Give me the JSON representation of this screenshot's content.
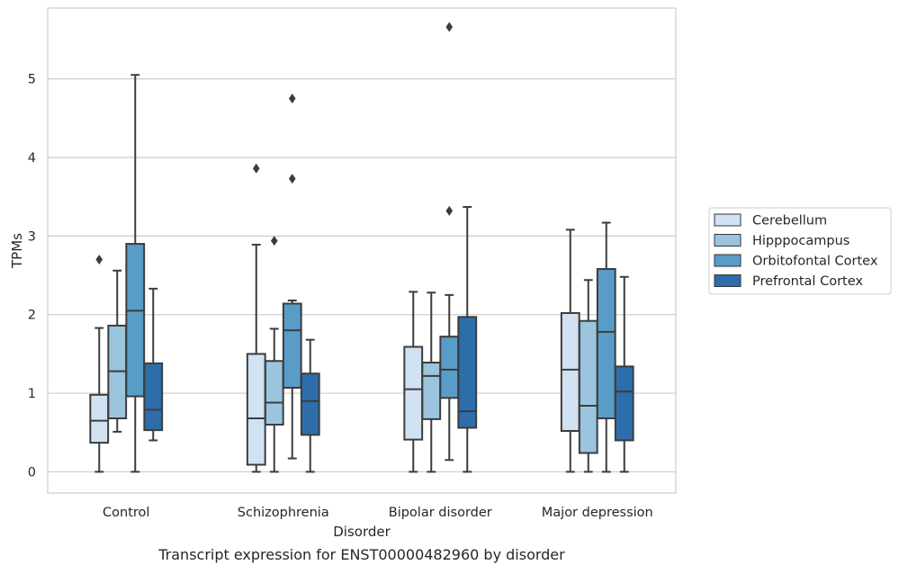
{
  "chart_data": {
    "type": "box",
    "title": "",
    "caption": "Transcript expression for ENST00000482960 by disorder",
    "xlabel": "Disorder",
    "ylabel": "TPMs",
    "ylim": [
      -0.27,
      5.9
    ],
    "yticks": [
      0,
      1,
      2,
      3,
      4,
      5
    ],
    "grid": "horizontal",
    "legend_position": "right",
    "categories": [
      "Control",
      "Schizophrenia",
      "Bipolar disorder",
      "Major depression"
    ],
    "series": [
      {
        "name": "Cerebellum",
        "color": "#d1e2f2",
        "boxes": [
          {
            "whislo": 0.0,
            "q1": 0.37,
            "med": 0.65,
            "q3": 0.98,
            "whishi": 1.83,
            "fliers": [
              2.7
            ]
          },
          {
            "whislo": 0.0,
            "q1": 0.09,
            "med": 0.68,
            "q3": 1.5,
            "whishi": 2.89,
            "fliers": [
              3.86
            ]
          },
          {
            "whislo": 0.0,
            "q1": 0.41,
            "med": 1.05,
            "q3": 1.59,
            "whishi": 2.29,
            "fliers": []
          },
          {
            "whislo": 0.0,
            "q1": 0.52,
            "med": 1.3,
            "q3": 2.02,
            "whishi": 3.08,
            "fliers": []
          }
        ]
      },
      {
        "name": "Hipppocampus",
        "color": "#9bc4de",
        "boxes": [
          {
            "whislo": 0.51,
            "q1": 0.68,
            "med": 1.28,
            "q3": 1.86,
            "whishi": 2.56,
            "fliers": []
          },
          {
            "whislo": 0.0,
            "q1": 0.6,
            "med": 0.88,
            "q3": 1.41,
            "whishi": 1.82,
            "fliers": [
              2.94
            ]
          },
          {
            "whislo": 0.0,
            "q1": 0.67,
            "med": 1.22,
            "q3": 1.39,
            "whishi": 2.28,
            "fliers": []
          },
          {
            "whislo": 0.0,
            "q1": 0.24,
            "med": 0.84,
            "q3": 1.92,
            "whishi": 2.44,
            "fliers": []
          }
        ]
      },
      {
        "name": "Orbitofontal Cortex",
        "color": "#5a9cc8",
        "boxes": [
          {
            "whislo": 0.0,
            "q1": 0.96,
            "med": 2.05,
            "q3": 2.9,
            "whishi": 5.05,
            "fliers": []
          },
          {
            "whislo": 0.17,
            "q1": 1.07,
            "med": 1.8,
            "q3": 2.14,
            "whishi": 2.18,
            "fliers": [
              3.73,
              4.75
            ]
          },
          {
            "whislo": 0.15,
            "q1": 0.94,
            "med": 1.3,
            "q3": 1.72,
            "whishi": 2.25,
            "fliers": [
              3.32,
              5.66
            ]
          },
          {
            "whislo": 0.0,
            "q1": 0.68,
            "med": 1.78,
            "q3": 2.58,
            "whishi": 3.17,
            "fliers": []
          }
        ]
      },
      {
        "name": "Prefrontal Cortex",
        "color": "#2d6eaa",
        "boxes": [
          {
            "whislo": 0.4,
            "q1": 0.53,
            "med": 0.79,
            "q3": 1.38,
            "whishi": 2.33,
            "fliers": []
          },
          {
            "whislo": 0.0,
            "q1": 0.47,
            "med": 0.9,
            "q3": 1.25,
            "whishi": 1.68,
            "fliers": []
          },
          {
            "whislo": 0.0,
            "q1": 0.56,
            "med": 0.77,
            "q3": 1.97,
            "whishi": 3.37,
            "fliers": []
          },
          {
            "whislo": 0.0,
            "q1": 0.4,
            "med": 1.02,
            "q3": 1.34,
            "whishi": 2.48,
            "fliers": []
          }
        ]
      }
    ]
  }
}
